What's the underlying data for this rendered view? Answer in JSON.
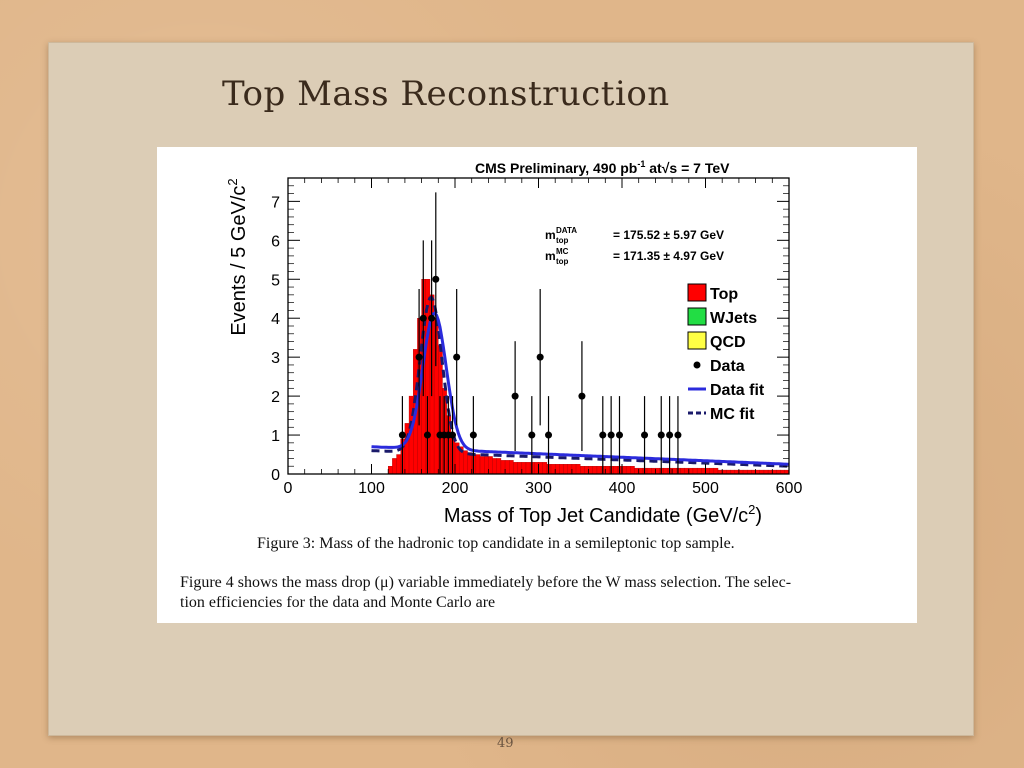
{
  "slide": {
    "title": "Top Mass Reconstruction",
    "page_number": "49",
    "caption": "Figure 3: Mass of the hadronic top candidate in a semileptonic top sample.",
    "body_lines": [
      "Figure 4 shows the mass drop (μ) variable immediately before the W mass selection. The selec-",
      "tion efficiencies for the data and Monte Carlo are"
    ]
  },
  "chart_data": {
    "type": "bar",
    "header": {
      "main": "CMS Preliminary, 490 pb",
      "sup": "-1",
      "at": " at",
      "sqrt_s": "√s = 7 TeV"
    },
    "xlabel": "Mass of Top Jet Candidate (GeV/c",
    "xlabel_sup": "2",
    "xlabel_close": ")",
    "ylabel": "Events / 5 GeV/c",
    "ylabel_sup": "2",
    "xlim": [
      0,
      600
    ],
    "ylim": [
      0,
      7.6
    ],
    "x_ticks": [
      0,
      100,
      200,
      300,
      400,
      500,
      600
    ],
    "y_ticks": [
      0,
      1,
      2,
      3,
      4,
      5,
      6,
      7
    ],
    "fit_results": [
      {
        "sym": "m",
        "sup": "DATA",
        "sub": "top",
        "text": "= 175.52 ±  5.97 GeV"
      },
      {
        "sym": "m",
        "sup": "MC",
        "sub": "top",
        "text": "= 171.35 ±  4.97 GeV"
      }
    ],
    "legend": [
      {
        "label": "Top",
        "kind": "box",
        "color": "#ff0000"
      },
      {
        "label": "WJets",
        "kind": "box",
        "color": "#22dd44"
      },
      {
        "label": "QCD",
        "kind": "box",
        "color": "#ffff44"
      },
      {
        "label": "Data",
        "kind": "dot",
        "color": "#000000"
      },
      {
        "label": "Data fit",
        "kind": "line",
        "color": "#2b2bdc"
      },
      {
        "label": "MC fit",
        "kind": "dash",
        "color": "#1a1a6a"
      }
    ],
    "series": [
      {
        "name": "Top",
        "color": "#ff0000",
        "bin_width": 5,
        "x": [
          120,
          125,
          130,
          135,
          140,
          145,
          150,
          155,
          160,
          165,
          170,
          175,
          180,
          185,
          190,
          195,
          200,
          205,
          210,
          215,
          220,
          225,
          230,
          235,
          240,
          245,
          250,
          255,
          260,
          265,
          270,
          275,
          280,
          285,
          290,
          295,
          300,
          305,
          310,
          315,
          320,
          325,
          330,
          335,
          340,
          345,
          350,
          355,
          360,
          365,
          370,
          375,
          380,
          385,
          390,
          395,
          400,
          405,
          410,
          415,
          420,
          425,
          430,
          435,
          440,
          445,
          450,
          455,
          460,
          465,
          470,
          475,
          480,
          485,
          490,
          495,
          500,
          505,
          510,
          515,
          520,
          525,
          530,
          535,
          540,
          545,
          550,
          555,
          560,
          565,
          570,
          575,
          580,
          585,
          590,
          595
        ],
        "values": [
          0.2,
          0.4,
          0.5,
          0.9,
          1.3,
          2.0,
          3.2,
          4.0,
          5.0,
          5.0,
          4.6,
          4.0,
          3.3,
          2.2,
          1.5,
          1.0,
          0.8,
          0.7,
          0.6,
          0.55,
          0.5,
          0.5,
          0.45,
          0.45,
          0.45,
          0.4,
          0.4,
          0.35,
          0.35,
          0.35,
          0.3,
          0.3,
          0.3,
          0.3,
          0.3,
          0.3,
          0.3,
          0.3,
          0.25,
          0.25,
          0.25,
          0.25,
          0.25,
          0.25,
          0.25,
          0.25,
          0.2,
          0.2,
          0.2,
          0.2,
          0.2,
          0.2,
          0.2,
          0.2,
          0.2,
          0.2,
          0.2,
          0.2,
          0.2,
          0.15,
          0.15,
          0.15,
          0.15,
          0.15,
          0.15,
          0.15,
          0.15,
          0.15,
          0.15,
          0.15,
          0.15,
          0.15,
          0.15,
          0.15,
          0.15,
          0.15,
          0.15,
          0.15,
          0.15,
          0.1,
          0.1,
          0.1,
          0.1,
          0.1,
          0.1,
          0.1,
          0.1,
          0.1,
          0.1,
          0.1,
          0.1,
          0.1,
          0.1,
          0.1,
          0.1,
          0.1
        ]
      },
      {
        "name": "Data",
        "kind": "points",
        "x": [
          137,
          157,
          162,
          167,
          172,
          177,
          182,
          187,
          192,
          197,
          202,
          222,
          272,
          292,
          302,
          312,
          352,
          377,
          387,
          397,
          427,
          447,
          457,
          467
        ],
        "y": [
          1,
          3,
          4,
          1,
          4,
          5,
          1,
          1,
          1,
          1,
          3,
          1,
          2,
          1,
          3,
          1,
          2,
          1,
          1,
          1,
          1,
          1,
          1,
          1
        ],
        "err": [
          1.0,
          1.75,
          2.0,
          1.0,
          2.0,
          2.23,
          1.0,
          1.0,
          1.0,
          1.0,
          1.75,
          1.0,
          1.41,
          1.0,
          1.75,
          1.0,
          1.41,
          1.0,
          1.0,
          1.0,
          1.0,
          1.0,
          1.0,
          1.0
        ]
      },
      {
        "name": "Data fit",
        "kind": "fit",
        "color": "#2b2bdc",
        "mean": 175.52,
        "peak": 3.5,
        "width": 14,
        "baseline": [
          0.7,
          0.25
        ]
      },
      {
        "name": "MC fit",
        "kind": "fit",
        "color": "#1a1a6a",
        "mean": 171.35,
        "peak": 4.0,
        "width": 13,
        "baseline": [
          0.6,
          0.2
        ]
      }
    ]
  }
}
